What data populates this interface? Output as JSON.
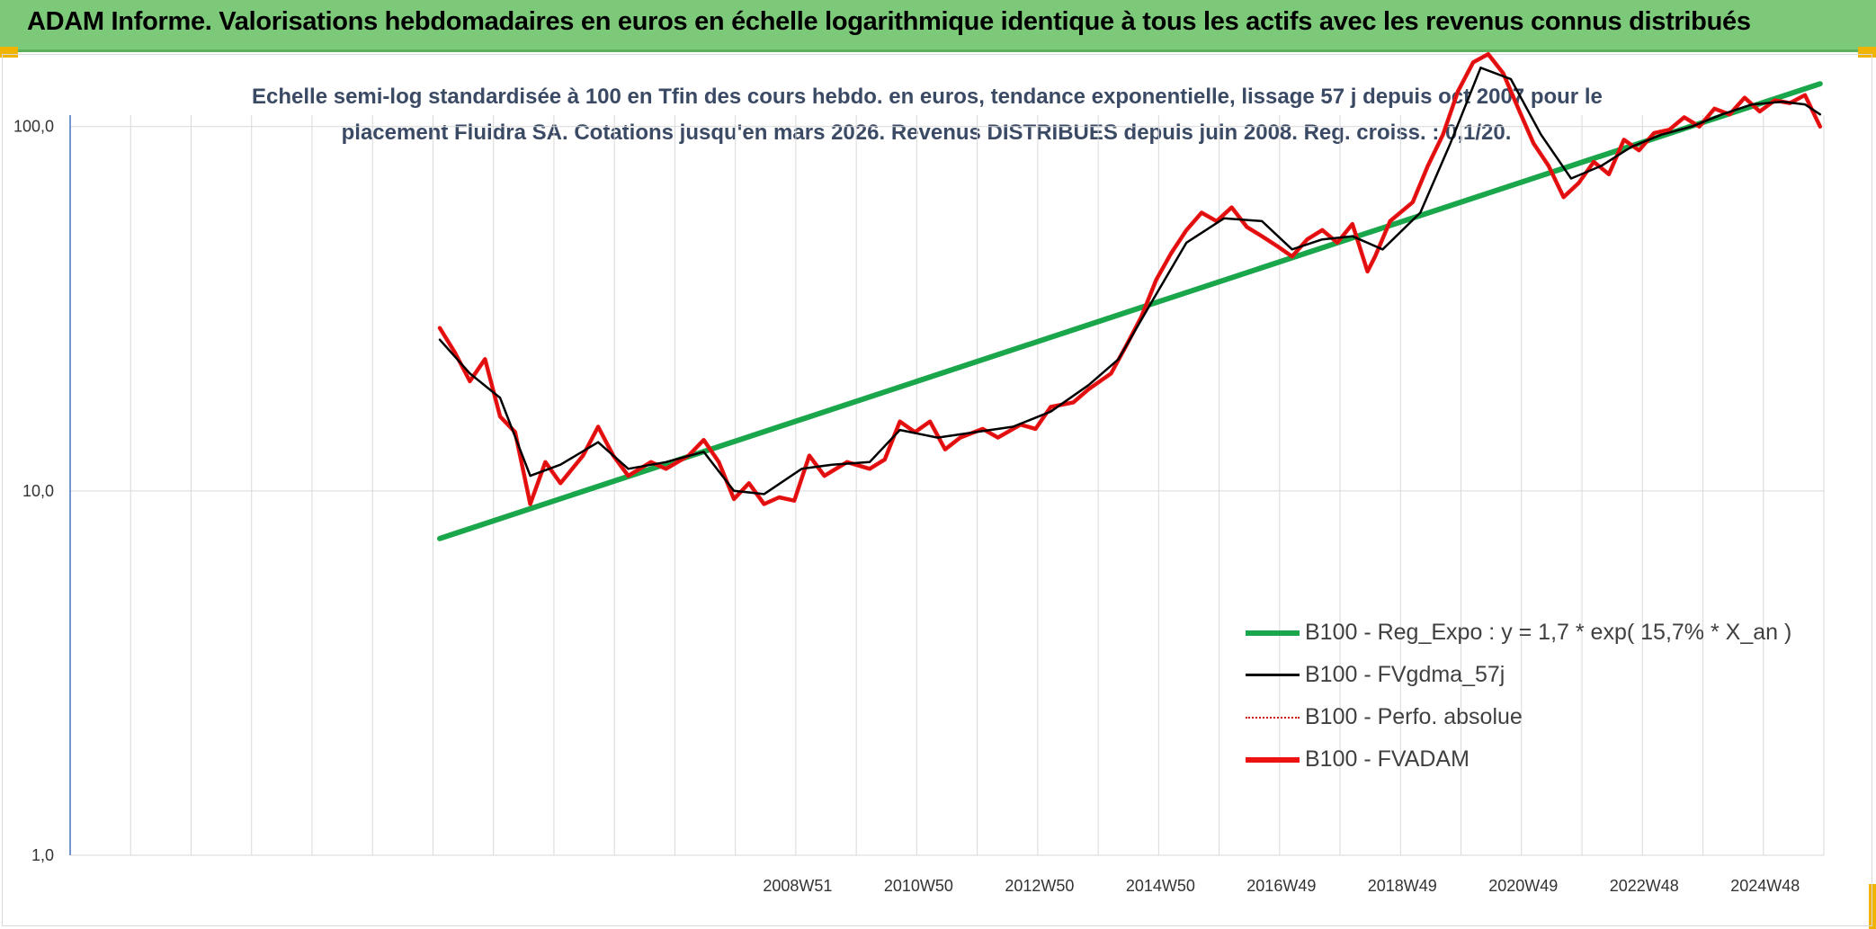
{
  "header": {
    "title": "ADAM Informe. Valorisations hebdomadaires en euros en échelle logarithmique identique à tous les actifs avec les revenus connus distribués"
  },
  "subtitle": {
    "line1": "Echelle semi-log standardisée à 100 en Tfin des cours hebdo. en euros, tendance exponentielle, lissage 57 j depuis oct 2007 pour le",
    "line2": "placement Fluidra SA. Cotations jusqu'en mars 2026. Revenus DISTRIBUES depuis juin 2008. Reg. croiss. : 0,1/20."
  },
  "colors": {
    "regression": "#1aa64a",
    "smoothed": "#000000",
    "perfo": "#d01010",
    "fvadam": "#ee1111",
    "grid": "#d9d9d9",
    "axis": "#4472c4"
  },
  "chart_data": {
    "type": "line",
    "scale": "log",
    "ylim": [
      1,
      160
    ],
    "y_ticks": [
      "1,0",
      "10,0",
      "100,0"
    ],
    "x_ticks": [
      "2008W51",
      "2010W50",
      "2012W50",
      "2014W50",
      "2016W49",
      "2018W49",
      "2020W49",
      "2022W48",
      "2024W48"
    ],
    "x_range": [
      2003.0,
      2026.25
    ],
    "legend_position": "bottom-right",
    "series": [
      {
        "name": "B100 - Reg_Expo : y = 1,7 * exp( 15,7% *  X_an )",
        "style": "regression",
        "points": [
          [
            2007.9,
            7.4
          ],
          [
            2026.2,
            131
          ]
        ]
      },
      {
        "name": "B100 - FVgdma_57j",
        "style": "smoothed",
        "points": [
          [
            2007.9,
            26
          ],
          [
            2008.3,
            21
          ],
          [
            2008.7,
            18
          ],
          [
            2009.1,
            11
          ],
          [
            2009.5,
            11.8
          ],
          [
            2010.0,
            13.6
          ],
          [
            2010.4,
            11.5
          ],
          [
            2010.9,
            12.0
          ],
          [
            2011.4,
            12.8
          ],
          [
            2011.8,
            10.0
          ],
          [
            2012.2,
            9.8
          ],
          [
            2012.7,
            11.5
          ],
          [
            2013.1,
            11.8
          ],
          [
            2013.6,
            12.0
          ],
          [
            2014.0,
            14.7
          ],
          [
            2014.5,
            14.0
          ],
          [
            2015.0,
            14.5
          ],
          [
            2015.5,
            15.0
          ],
          [
            2016.0,
            16.5
          ],
          [
            2016.5,
            19.5
          ],
          [
            2016.9,
            23
          ],
          [
            2017.3,
            32
          ],
          [
            2017.8,
            48
          ],
          [
            2018.3,
            56
          ],
          [
            2018.8,
            55
          ],
          [
            2019.2,
            46
          ],
          [
            2019.6,
            49
          ],
          [
            2020.0,
            50
          ],
          [
            2020.4,
            46
          ],
          [
            2020.9,
            58
          ],
          [
            2021.3,
            90
          ],
          [
            2021.7,
            145
          ],
          [
            2022.1,
            135
          ],
          [
            2022.5,
            95
          ],
          [
            2022.9,
            72
          ],
          [
            2023.3,
            78
          ],
          [
            2023.7,
            88
          ],
          [
            2024.1,
            95
          ],
          [
            2024.5,
            100
          ],
          [
            2024.9,
            108
          ],
          [
            2025.3,
            115
          ],
          [
            2025.7,
            117
          ],
          [
            2026.0,
            115
          ],
          [
            2026.2,
            108
          ]
        ]
      },
      {
        "name": "B100 - Perfo. absolue",
        "style": "perfo",
        "points": [
          [
            2007.9,
            28
          ],
          [
            2008.1,
            24
          ],
          [
            2008.3,
            20
          ],
          [
            2008.5,
            23
          ],
          [
            2008.7,
            16
          ],
          [
            2008.9,
            14.5
          ],
          [
            2009.1,
            9.2
          ],
          [
            2009.3,
            12
          ],
          [
            2009.5,
            10.5
          ],
          [
            2009.8,
            12.5
          ],
          [
            2010.0,
            15
          ],
          [
            2010.2,
            12.5
          ],
          [
            2010.4,
            11
          ],
          [
            2010.7,
            12
          ],
          [
            2010.9,
            11.5
          ],
          [
            2011.2,
            12.5
          ],
          [
            2011.4,
            13.8
          ],
          [
            2011.6,
            12
          ],
          [
            2011.8,
            9.5
          ],
          [
            2012.0,
            10.5
          ],
          [
            2012.2,
            9.2
          ],
          [
            2012.4,
            9.6
          ],
          [
            2012.6,
            9.4
          ],
          [
            2012.8,
            12.5
          ],
          [
            2013.0,
            11
          ],
          [
            2013.3,
            12
          ],
          [
            2013.6,
            11.5
          ],
          [
            2013.8,
            12.2
          ],
          [
            2014.0,
            15.5
          ],
          [
            2014.2,
            14.5
          ],
          [
            2014.4,
            15.5
          ],
          [
            2014.6,
            13
          ],
          [
            2014.8,
            14
          ],
          [
            2015.1,
            14.8
          ],
          [
            2015.3,
            14
          ],
          [
            2015.6,
            15.2
          ],
          [
            2015.8,
            14.8
          ],
          [
            2016.0,
            17
          ],
          [
            2016.3,
            17.5
          ],
          [
            2016.5,
            19
          ],
          [
            2016.8,
            21
          ],
          [
            2017.0,
            25
          ],
          [
            2017.2,
            30
          ],
          [
            2017.4,
            38
          ],
          [
            2017.6,
            45
          ],
          [
            2017.8,
            52
          ],
          [
            2018.0,
            58
          ],
          [
            2018.2,
            55
          ],
          [
            2018.4,
            60
          ],
          [
            2018.6,
            53
          ],
          [
            2018.8,
            50
          ],
          [
            2019.0,
            47
          ],
          [
            2019.2,
            44
          ],
          [
            2019.4,
            49
          ],
          [
            2019.6,
            52
          ],
          [
            2019.8,
            48
          ],
          [
            2020.0,
            54
          ],
          [
            2020.2,
            40
          ],
          [
            2020.3,
            44
          ],
          [
            2020.5,
            55
          ],
          [
            2020.8,
            62
          ],
          [
            2021.0,
            78
          ],
          [
            2021.2,
            95
          ],
          [
            2021.4,
            125
          ],
          [
            2021.6,
            150
          ],
          [
            2021.8,
            158
          ],
          [
            2022.0,
            140
          ],
          [
            2022.2,
            112
          ],
          [
            2022.4,
            90
          ],
          [
            2022.6,
            78
          ],
          [
            2022.8,
            64
          ],
          [
            2023.0,
            70
          ],
          [
            2023.2,
            80
          ],
          [
            2023.4,
            74
          ],
          [
            2023.6,
            92
          ],
          [
            2023.8,
            86
          ],
          [
            2024.0,
            96
          ],
          [
            2024.2,
            98
          ],
          [
            2024.4,
            106
          ],
          [
            2024.6,
            100
          ],
          [
            2024.8,
            112
          ],
          [
            2025.0,
            108
          ],
          [
            2025.2,
            120
          ],
          [
            2025.4,
            110
          ],
          [
            2025.6,
            118
          ],
          [
            2025.8,
            116
          ],
          [
            2026.0,
            122
          ],
          [
            2026.2,
            100
          ]
        ]
      },
      {
        "name": "B100 - FVADAM",
        "style": "fvadam",
        "points": [
          [
            2007.9,
            28
          ],
          [
            2008.1,
            24
          ],
          [
            2008.3,
            20
          ],
          [
            2008.5,
            23
          ],
          [
            2008.7,
            16
          ],
          [
            2008.9,
            14.5
          ],
          [
            2009.1,
            9.2
          ],
          [
            2009.3,
            12
          ],
          [
            2009.5,
            10.5
          ],
          [
            2009.8,
            12.5
          ],
          [
            2010.0,
            15
          ],
          [
            2010.2,
            12.5
          ],
          [
            2010.4,
            11
          ],
          [
            2010.7,
            12
          ],
          [
            2010.9,
            11.5
          ],
          [
            2011.2,
            12.5
          ],
          [
            2011.4,
            13.8
          ],
          [
            2011.6,
            12
          ],
          [
            2011.8,
            9.5
          ],
          [
            2012.0,
            10.5
          ],
          [
            2012.2,
            9.2
          ],
          [
            2012.4,
            9.6
          ],
          [
            2012.6,
            9.4
          ],
          [
            2012.8,
            12.5
          ],
          [
            2013.0,
            11
          ],
          [
            2013.3,
            12
          ],
          [
            2013.6,
            11.5
          ],
          [
            2013.8,
            12.2
          ],
          [
            2014.0,
            15.5
          ],
          [
            2014.2,
            14.5
          ],
          [
            2014.4,
            15.5
          ],
          [
            2014.6,
            13
          ],
          [
            2014.8,
            14
          ],
          [
            2015.1,
            14.8
          ],
          [
            2015.3,
            14
          ],
          [
            2015.6,
            15.2
          ],
          [
            2015.8,
            14.8
          ],
          [
            2016.0,
            17
          ],
          [
            2016.3,
            17.5
          ],
          [
            2016.5,
            19
          ],
          [
            2016.8,
            21
          ],
          [
            2017.0,
            25
          ],
          [
            2017.2,
            30
          ],
          [
            2017.4,
            38
          ],
          [
            2017.6,
            45
          ],
          [
            2017.8,
            52
          ],
          [
            2018.0,
            58
          ],
          [
            2018.2,
            55
          ],
          [
            2018.4,
            60
          ],
          [
            2018.6,
            53
          ],
          [
            2018.8,
            50
          ],
          [
            2019.0,
            47
          ],
          [
            2019.2,
            44
          ],
          [
            2019.4,
            49
          ],
          [
            2019.6,
            52
          ],
          [
            2019.8,
            48
          ],
          [
            2020.0,
            54
          ],
          [
            2020.2,
            40
          ],
          [
            2020.3,
            44
          ],
          [
            2020.5,
            55
          ],
          [
            2020.8,
            62
          ],
          [
            2021.0,
            78
          ],
          [
            2021.2,
            95
          ],
          [
            2021.4,
            125
          ],
          [
            2021.6,
            150
          ],
          [
            2021.8,
            158
          ],
          [
            2022.0,
            140
          ],
          [
            2022.2,
            112
          ],
          [
            2022.4,
            90
          ],
          [
            2022.6,
            78
          ],
          [
            2022.8,
            64
          ],
          [
            2023.0,
            70
          ],
          [
            2023.2,
            80
          ],
          [
            2023.4,
            74
          ],
          [
            2023.6,
            92
          ],
          [
            2023.8,
            86
          ],
          [
            2024.0,
            96
          ],
          [
            2024.2,
            98
          ],
          [
            2024.4,
            106
          ],
          [
            2024.6,
            100
          ],
          [
            2024.8,
            112
          ],
          [
            2025.0,
            108
          ],
          [
            2025.2,
            120
          ],
          [
            2025.4,
            110
          ],
          [
            2025.6,
            118
          ],
          [
            2025.8,
            116
          ],
          [
            2026.0,
            122
          ],
          [
            2026.2,
            100
          ]
        ]
      }
    ]
  },
  "legend": {
    "items": [
      {
        "label": "B100 - Reg_Expo : y = 1,7 * exp( 15,7% *  X_an )",
        "style": "regression"
      },
      {
        "label": "B100 - FVgdma_57j",
        "style": "smoothed"
      },
      {
        "label": "B100 - Perfo. absolue",
        "style": "perfo"
      },
      {
        "label": "B100 - FVADAM",
        "style": "fvadam"
      }
    ]
  }
}
